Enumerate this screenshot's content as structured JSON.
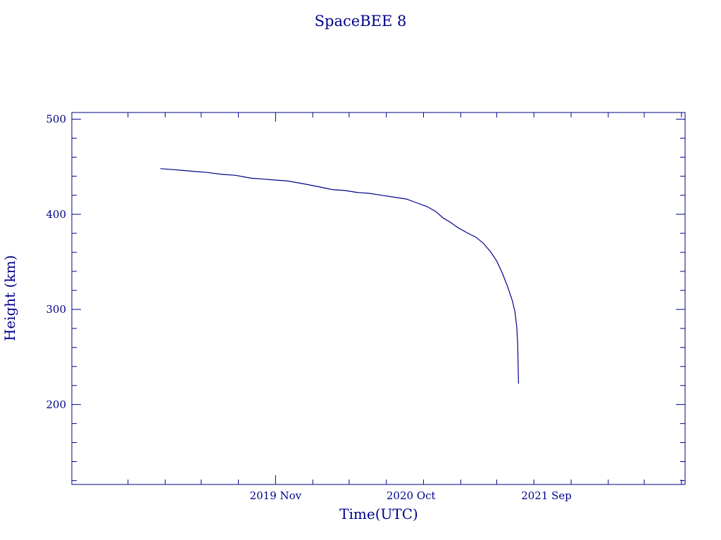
{
  "colors": {
    "foreground": "#00008b",
    "background": "#ffffff"
  },
  "chart_data": {
    "type": "line",
    "title": "SpaceBEE 8",
    "xlabel": "Time(UTC)",
    "ylabel": "Height (km)",
    "xlim": [
      "2018-06-15",
      "2022-08-10"
    ],
    "ylim": [
      116,
      507
    ],
    "x_tick_labels": [
      {
        "date": "2019-11-01",
        "label": "2019 Nov"
      },
      {
        "date": "2020-10-01",
        "label": "2020 Oct"
      },
      {
        "date": "2021-09-01",
        "label": "2021 Sep"
      }
    ],
    "y_ticks": [
      200,
      300,
      400,
      500
    ],
    "y_tick_labels": [
      "200",
      "300",
      "400",
      "500"
    ],
    "grid": false,
    "series": [
      {
        "x": [
          "2019-01-20",
          "2019-02-20",
          "2019-03-20",
          "2019-04-15",
          "2019-05-15",
          "2019-06-20",
          "2019-07-25",
          "2019-09-01",
          "2019-10-01",
          "2019-11-01",
          "2019-12-01",
          "2020-01-10",
          "2020-02-15",
          "2020-03-20",
          "2020-04-20",
          "2020-05-20",
          "2020-06-20",
          "2020-07-20",
          "2020-08-20",
          "2020-09-20",
          "2020-10-15",
          "2020-11-10",
          "2020-12-01",
          "2020-12-20",
          "2021-01-05",
          "2021-01-25",
          "2021-02-15",
          "2021-03-10",
          "2021-03-28",
          "2021-04-15",
          "2021-05-01",
          "2021-05-15",
          "2021-05-28",
          "2021-06-08",
          "2021-06-15",
          "2021-06-20",
          "2021-06-22",
          "2021-06-23",
          "2021-06-24"
        ],
        "y": [
          448,
          447,
          446,
          445,
          444,
          442,
          441,
          438,
          437,
          436,
          435,
          432,
          429,
          426,
          425,
          423,
          422,
          420,
          418,
          416,
          412,
          408,
          403,
          396,
          392,
          386,
          381,
          376,
          370,
          361,
          351,
          338,
          324,
          310,
          298,
          280,
          262,
          240,
          222
        ]
      }
    ]
  }
}
